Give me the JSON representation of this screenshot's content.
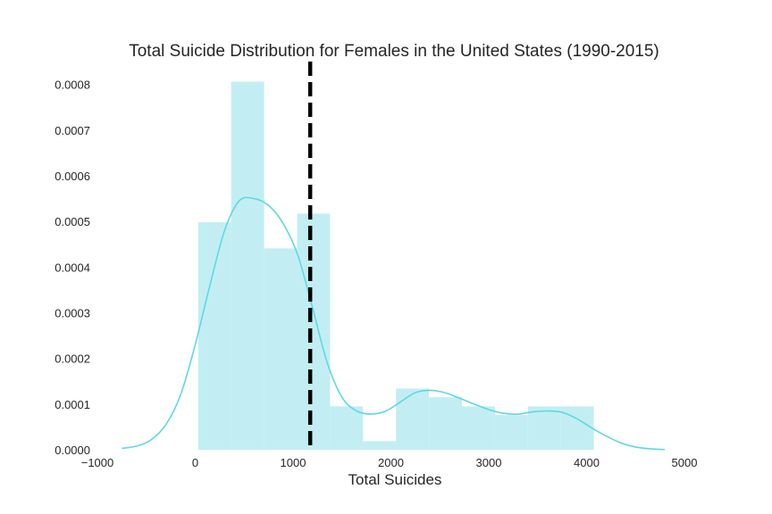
{
  "chart_data": {
    "type": "bar",
    "title": "Total Suicide Distribution for Females in the United States (1990-2015)",
    "xlabel": "Total Suicides",
    "ylabel": "",
    "xlim": [
      -1000,
      5000
    ],
    "ylim": [
      0,
      0.00085
    ],
    "xticks": [
      -1000,
      0,
      1000,
      2000,
      3000,
      4000,
      5000
    ],
    "xtick_labels": [
      "−1000",
      "0",
      "1000",
      "2000",
      "3000",
      "4000",
      "5000"
    ],
    "yticks": [
      0,
      0.0001,
      0.0002,
      0.0003,
      0.0004,
      0.0005,
      0.0006,
      0.0007,
      0.0008
    ],
    "ytick_labels": [
      "0.0000",
      "0.0001",
      "0.0002",
      "0.0003",
      "0.0004",
      "0.0005",
      "0.0006",
      "0.0007",
      "0.0008"
    ],
    "grid": false,
    "legend": "none",
    "histogram": {
      "color": "#c2eef3",
      "bins": [
        {
          "x0": 30,
          "x1": 367,
          "density": 0.000498
        },
        {
          "x0": 367,
          "x1": 704,
          "density": 0.000806
        },
        {
          "x0": 704,
          "x1": 1041,
          "density": 0.000441
        },
        {
          "x0": 1041,
          "x1": 1378,
          "density": 0.000517
        },
        {
          "x0": 1378,
          "x1": 1715,
          "density": 9.5e-05
        },
        {
          "x0": 1715,
          "x1": 2052,
          "density": 1.9e-05
        },
        {
          "x0": 2052,
          "x1": 2389,
          "density": 0.000134
        },
        {
          "x0": 2389,
          "x1": 2726,
          "density": 0.000115
        },
        {
          "x0": 2726,
          "x1": 3063,
          "density": 9.5e-05
        },
        {
          "x0": 3063,
          "x1": 3400,
          "density": 7.6e-05
        },
        {
          "x0": 3400,
          "x1": 3737,
          "density": 9.5e-05
        },
        {
          "x0": 3737,
          "x1": 4074,
          "density": 9.5e-05
        }
      ]
    },
    "kde": {
      "color": "#5fd8e2",
      "x": [
        -750,
        -600,
        -450,
        -300,
        -150,
        0,
        150,
        300,
        450,
        600,
        750,
        900,
        1050,
        1200,
        1350,
        1500,
        1650,
        1800,
        1950,
        2100,
        2250,
        2400,
        2550,
        2700,
        2850,
        3000,
        3150,
        3300,
        3450,
        3600,
        3750,
        3900,
        4050,
        4200,
        4350,
        4500,
        4650,
        4800
      ],
      "y": [
        3e-06,
        8e-06,
        2.2e-05,
        5.5e-05,
        0.00012,
        0.00023,
        0.00036,
        0.00048,
        0.000545,
        0.00055,
        0.000535,
        0.000495,
        0.000425,
        0.00031,
        0.00019,
        0.000115,
        8.5e-05,
        7.8e-05,
        8.5e-05,
        0.000105,
        0.000125,
        0.00013,
        0.000125,
        0.000113,
        0.0001,
        8.8e-05,
        8e-05,
        7.8e-05,
        8.3e-05,
        8.5e-05,
        8.2e-05,
        6.8e-05,
        4.8e-05,
        3e-05,
        1.5e-05,
        6e-06,
        2e-06,
        5e-07
      ]
    },
    "mean_line": {
      "x": 1175,
      "color": "#000000",
      "style": "dashed"
    }
  }
}
